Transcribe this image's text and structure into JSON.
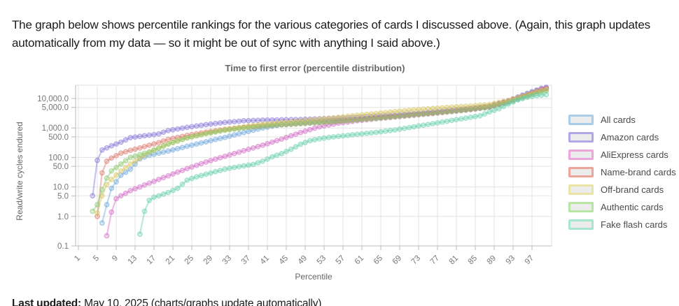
{
  "page": {
    "intro_text": "The graph below shows percentile rankings for the various categories of cards I discussed above. (Again, this graph updates automatically from my data — so it might be out of sync with anything I said above.)",
    "last_updated_label": "Last updated:",
    "last_updated_text": " May 10, 2025 (charts/graphs update automatically)"
  },
  "chart_data": {
    "type": "line",
    "title": "Time to first error (percentile distribution)",
    "xlabel": "Percentile",
    "ylabel": "Read/write cycles endured",
    "yscale": "log",
    "grid": true,
    "legend_position": "right",
    "xlim": [
      1,
      100
    ],
    "ylim": [
      0.1,
      28000
    ],
    "x_ticks": [
      1,
      5,
      9,
      13,
      17,
      21,
      25,
      29,
      33,
      37,
      41,
      45,
      49,
      53,
      57,
      61,
      65,
      69,
      73,
      77,
      81,
      85,
      89,
      93,
      97
    ],
    "y_tick_values": [
      10000,
      5000,
      1000,
      500,
      100,
      50,
      10,
      5,
      1,
      0.1
    ],
    "y_tick_labels": [
      "10,000.0",
      "5,000.0",
      "1,000.0",
      "500.0",
      "100.0",
      "50.0",
      "10.0",
      "5.0",
      "1.0",
      "0.1"
    ],
    "series": [
      {
        "name": "All cards",
        "line_color": "#6FA8DC",
        "legend_color": "#A9CDE8",
        "points": [
          [
            6,
            0.6
          ],
          [
            7,
            2.5
          ],
          [
            8,
            9
          ],
          [
            9,
            15
          ],
          [
            10,
            25
          ],
          [
            12,
            40
          ],
          [
            14,
            90
          ],
          [
            16,
            118
          ],
          [
            18,
            140
          ],
          [
            20,
            165
          ],
          [
            24,
            240
          ],
          [
            28,
            340
          ],
          [
            32,
            480
          ],
          [
            36,
            700
          ],
          [
            40,
            1000
          ],
          [
            44,
            1300
          ],
          [
            48,
            1500
          ],
          [
            52,
            1650
          ],
          [
            56,
            1800
          ],
          [
            60,
            2000
          ],
          [
            64,
            2250
          ],
          [
            68,
            2550
          ],
          [
            72,
            2900
          ],
          [
            76,
            3300
          ],
          [
            80,
            3800
          ],
          [
            84,
            4400
          ],
          [
            88,
            5400
          ],
          [
            92,
            8200
          ],
          [
            95,
            12500
          ],
          [
            97,
            16000
          ],
          [
            99,
            21000
          ],
          [
            100,
            23000
          ]
        ]
      },
      {
        "name": "Amazon cards",
        "line_color": "#8877D8",
        "legend_color": "#B1A7E8",
        "points": [
          [
            4,
            5
          ],
          [
            5,
            80
          ],
          [
            6,
            180
          ],
          [
            8,
            250
          ],
          [
            10,
            330
          ],
          [
            12,
            470
          ],
          [
            14,
            520
          ],
          [
            16,
            570
          ],
          [
            18,
            630
          ],
          [
            20,
            820
          ],
          [
            24,
            1050
          ],
          [
            28,
            1300
          ],
          [
            32,
            1550
          ],
          [
            36,
            1750
          ],
          [
            40,
            1850
          ],
          [
            44,
            1900
          ],
          [
            48,
            1950
          ],
          [
            52,
            2050
          ],
          [
            56,
            2150
          ],
          [
            60,
            2300
          ],
          [
            64,
            2500
          ],
          [
            68,
            2750
          ],
          [
            72,
            3100
          ],
          [
            76,
            3500
          ],
          [
            80,
            4000
          ],
          [
            84,
            4600
          ],
          [
            88,
            5600
          ],
          [
            92,
            8500
          ],
          [
            95,
            13000
          ],
          [
            97,
            17000
          ],
          [
            99,
            22000
          ],
          [
            100,
            24000
          ]
        ]
      },
      {
        "name": "AliExpress cards",
        "line_color": "#D36EC6",
        "legend_color": "#EBA6DB",
        "points": [
          [
            7,
            0.22
          ],
          [
            8,
            1.4
          ],
          [
            9,
            4
          ],
          [
            10,
            5
          ],
          [
            12,
            7.5
          ],
          [
            14,
            10
          ],
          [
            16,
            13.5
          ],
          [
            18,
            18
          ],
          [
            20,
            24
          ],
          [
            24,
            42
          ],
          [
            28,
            70
          ],
          [
            32,
            110
          ],
          [
            36,
            170
          ],
          [
            40,
            260
          ],
          [
            44,
            420
          ],
          [
            48,
            700
          ],
          [
            52,
            1100
          ],
          [
            56,
            1450
          ],
          [
            60,
            1750
          ],
          [
            64,
            2050
          ],
          [
            68,
            2350
          ],
          [
            72,
            2700
          ],
          [
            76,
            3100
          ],
          [
            80,
            3600
          ],
          [
            84,
            4200
          ],
          [
            88,
            5100
          ],
          [
            92,
            7800
          ],
          [
            95,
            11500
          ],
          [
            97,
            15000
          ],
          [
            99,
            19500
          ],
          [
            100,
            21500
          ]
        ]
      },
      {
        "name": "Name-brand cards",
        "line_color": "#DC796D",
        "legend_color": "#EBA59B",
        "points": [
          [
            5,
            1
          ],
          [
            6,
            30
          ],
          [
            7,
            75
          ],
          [
            8,
            95
          ],
          [
            10,
            140
          ],
          [
            12,
            175
          ],
          [
            14,
            210
          ],
          [
            16,
            260
          ],
          [
            18,
            320
          ],
          [
            20,
            410
          ],
          [
            24,
            560
          ],
          [
            28,
            720
          ],
          [
            32,
            900
          ],
          [
            36,
            1050
          ],
          [
            40,
            1200
          ],
          [
            44,
            1300
          ],
          [
            48,
            1400
          ],
          [
            52,
            1550
          ],
          [
            56,
            1750
          ],
          [
            60,
            1950
          ],
          [
            64,
            2200
          ],
          [
            68,
            2500
          ],
          [
            72,
            2850
          ],
          [
            76,
            3250
          ],
          [
            80,
            3750
          ],
          [
            84,
            4350
          ],
          [
            88,
            5300
          ],
          [
            92,
            7900
          ],
          [
            95,
            11800
          ],
          [
            97,
            15500
          ],
          [
            99,
            20000
          ],
          [
            100,
            22000
          ]
        ]
      },
      {
        "name": "Off-brand cards",
        "line_color": "#D7C65C",
        "legend_color": "#EAE5A4",
        "points": [
          [
            5,
            1.3
          ],
          [
            6,
            5
          ],
          [
            7,
            12
          ],
          [
            8,
            18
          ],
          [
            10,
            35
          ],
          [
            12,
            60
          ],
          [
            14,
            95
          ],
          [
            16,
            150
          ],
          [
            18,
            210
          ],
          [
            20,
            290
          ],
          [
            24,
            460
          ],
          [
            28,
            660
          ],
          [
            32,
            880
          ],
          [
            36,
            1100
          ],
          [
            40,
            1350
          ],
          [
            44,
            1550
          ],
          [
            48,
            1750
          ],
          [
            52,
            2000
          ],
          [
            56,
            2300
          ],
          [
            60,
            2700
          ],
          [
            64,
            3100
          ],
          [
            68,
            3600
          ],
          [
            72,
            4100
          ],
          [
            76,
            4600
          ],
          [
            80,
            5100
          ],
          [
            84,
            5600
          ],
          [
            88,
            6300
          ],
          [
            92,
            8600
          ],
          [
            95,
            12000
          ],
          [
            97,
            15000
          ],
          [
            99,
            18500
          ],
          [
            100,
            20000
          ]
        ]
      },
      {
        "name": "Authentic cards",
        "line_color": "#8BC86F",
        "legend_color": "#B7E6A4",
        "points": [
          [
            4,
            1.5
          ],
          [
            5,
            2.5
          ],
          [
            6,
            8
          ],
          [
            7,
            20
          ],
          [
            8,
            35
          ],
          [
            10,
            60
          ],
          [
            12,
            100
          ],
          [
            14,
            125
          ],
          [
            16,
            155
          ],
          [
            18,
            205
          ],
          [
            20,
            285
          ],
          [
            24,
            460
          ],
          [
            28,
            640
          ],
          [
            32,
            830
          ],
          [
            36,
            1000
          ],
          [
            40,
            1150
          ],
          [
            44,
            1280
          ],
          [
            48,
            1400
          ],
          [
            52,
            1520
          ],
          [
            56,
            1650
          ],
          [
            60,
            1850
          ],
          [
            64,
            2100
          ],
          [
            68,
            2400
          ],
          [
            72,
            2750
          ],
          [
            76,
            3150
          ],
          [
            80,
            3600
          ],
          [
            84,
            4200
          ],
          [
            88,
            5000
          ],
          [
            92,
            7300
          ],
          [
            95,
            10500
          ],
          [
            97,
            13500
          ],
          [
            99,
            16500
          ],
          [
            100,
            18000
          ]
        ]
      },
      {
        "name": "Fake flash cards",
        "line_color": "#66CFAF",
        "legend_color": "#A6E7CE",
        "points": [
          [
            14,
            0.25
          ],
          [
            15,
            1.5
          ],
          [
            16,
            3.5
          ],
          [
            17,
            4.5
          ],
          [
            18,
            5
          ],
          [
            20,
            6.5
          ],
          [
            22,
            9
          ],
          [
            24,
            17
          ],
          [
            26,
            22
          ],
          [
            28,
            27
          ],
          [
            30,
            33
          ],
          [
            32,
            40
          ],
          [
            34,
            46
          ],
          [
            36,
            52
          ],
          [
            38,
            58
          ],
          [
            40,
            75
          ],
          [
            42,
            105
          ],
          [
            44,
            135
          ],
          [
            46,
            190
          ],
          [
            48,
            280
          ],
          [
            50,
            370
          ],
          [
            52,
            430
          ],
          [
            54,
            480
          ],
          [
            56,
            520
          ],
          [
            58,
            560
          ],
          [
            60,
            610
          ],
          [
            64,
            710
          ],
          [
            68,
            860
          ],
          [
            72,
            1100
          ],
          [
            76,
            1400
          ],
          [
            80,
            1800
          ],
          [
            84,
            2300
          ],
          [
            86,
            2600
          ],
          [
            88,
            3500
          ],
          [
            90,
            4500
          ],
          [
            92,
            6500
          ],
          [
            94,
            9000
          ],
          [
            96,
            11000
          ],
          [
            98,
            12500
          ],
          [
            100,
            13500
          ]
        ]
      }
    ]
  }
}
